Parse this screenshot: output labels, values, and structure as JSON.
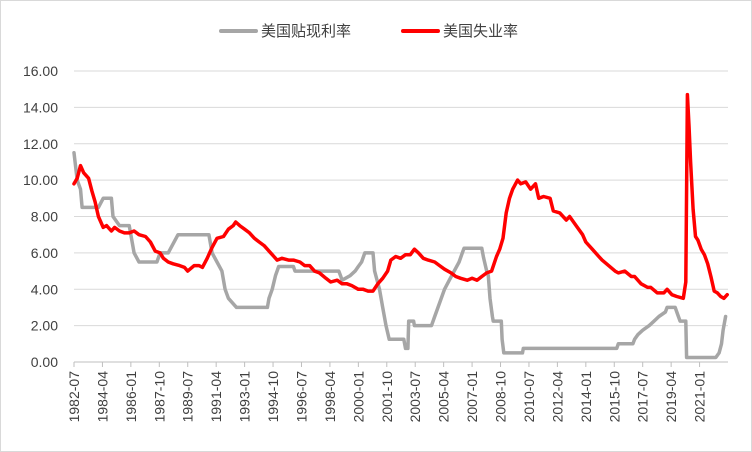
{
  "chart_data": {
    "type": "line",
    "title": "",
    "xlabel": "",
    "ylabel": "",
    "ylim": [
      0,
      16
    ],
    "yticks": [
      "16.00",
      "14.00",
      "12.00",
      "10.00",
      "8.00",
      "6.00",
      "4.00",
      "2.00",
      "0.00"
    ],
    "xticks": [
      "1982-07",
      "1984-04",
      "1986-01",
      "1987-10",
      "1989-07",
      "1991-04",
      "1993-01",
      "1994-10",
      "1996-07",
      "1998-04",
      "2000-01",
      "2001-10",
      "2003-07",
      "2005-04",
      "2007-01",
      "2008-10",
      "2010-07",
      "2012-04",
      "2014-01",
      "2015-10",
      "2017-07",
      "2019-04",
      "2021-01"
    ],
    "x_range": [
      1982.5,
      2022.75
    ],
    "grid": "horizontal",
    "legend_position": "top",
    "series": [
      {
        "name": "美国贴现利率",
        "color": "#a6a6a6",
        "points": [
          [
            1982.5,
            11.5
          ],
          [
            1982.7,
            10.0
          ],
          [
            1982.9,
            9.5
          ],
          [
            1983.0,
            8.5
          ],
          [
            1984.0,
            8.5
          ],
          [
            1984.3,
            9.0
          ],
          [
            1984.8,
            9.0
          ],
          [
            1984.9,
            8.0
          ],
          [
            1985.3,
            7.5
          ],
          [
            1985.9,
            7.5
          ],
          [
            1986.2,
            6.0
          ],
          [
            1986.5,
            5.5
          ],
          [
            1987.6,
            5.5
          ],
          [
            1987.8,
            6.0
          ],
          [
            1988.3,
            6.0
          ],
          [
            1988.6,
            6.5
          ],
          [
            1988.9,
            7.0
          ],
          [
            1990.8,
            7.0
          ],
          [
            1991.0,
            6.0
          ],
          [
            1991.3,
            5.5
          ],
          [
            1991.6,
            5.0
          ],
          [
            1991.8,
            4.0
          ],
          [
            1992.0,
            3.5
          ],
          [
            1992.5,
            3.0
          ],
          [
            1994.4,
            3.0
          ],
          [
            1994.5,
            3.5
          ],
          [
            1994.7,
            4.0
          ],
          [
            1994.9,
            4.75
          ],
          [
            1995.1,
            5.25
          ],
          [
            1996.0,
            5.25
          ],
          [
            1996.1,
            5.0
          ],
          [
            1997.2,
            5.0
          ],
          [
            1998.8,
            5.0
          ],
          [
            1998.9,
            4.75
          ],
          [
            1999.0,
            4.5
          ],
          [
            1999.5,
            4.75
          ],
          [
            1999.8,
            5.0
          ],
          [
            2000.0,
            5.25
          ],
          [
            2000.2,
            5.5
          ],
          [
            2000.4,
            6.0
          ],
          [
            2000.9,
            6.0
          ],
          [
            2001.0,
            5.0
          ],
          [
            2001.3,
            4.0
          ],
          [
            2001.5,
            3.0
          ],
          [
            2001.7,
            2.0
          ],
          [
            2001.9,
            1.25
          ],
          [
            2002.8,
            1.25
          ],
          [
            2002.9,
            0.75
          ],
          [
            2003.05,
            0.75
          ],
          [
            2003.1,
            2.25
          ],
          [
            2003.4,
            2.25
          ],
          [
            2003.45,
            2.0
          ],
          [
            2004.5,
            2.0
          ],
          [
            2004.7,
            2.5
          ],
          [
            2004.9,
            3.0
          ],
          [
            2005.3,
            4.0
          ],
          [
            2005.6,
            4.5
          ],
          [
            2005.9,
            5.0
          ],
          [
            2006.2,
            5.5
          ],
          [
            2006.4,
            6.0
          ],
          [
            2006.5,
            6.25
          ],
          [
            2007.6,
            6.25
          ],
          [
            2007.7,
            5.75
          ],
          [
            2007.9,
            5.0
          ],
          [
            2008.0,
            4.75
          ],
          [
            2008.1,
            3.5
          ],
          [
            2008.25,
            2.5
          ],
          [
            2008.3,
            2.25
          ],
          [
            2008.8,
            2.25
          ],
          [
            2008.85,
            1.25
          ],
          [
            2008.95,
            0.5
          ],
          [
            2010.1,
            0.5
          ],
          [
            2010.15,
            0.75
          ],
          [
            2015.9,
            0.75
          ],
          [
            2016.0,
            1.0
          ],
          [
            2016.9,
            1.0
          ],
          [
            2017.0,
            1.25
          ],
          [
            2017.2,
            1.5
          ],
          [
            2017.5,
            1.75
          ],
          [
            2017.9,
            2.0
          ],
          [
            2018.2,
            2.25
          ],
          [
            2018.5,
            2.5
          ],
          [
            2018.9,
            2.75
          ],
          [
            2019.0,
            3.0
          ],
          [
            2019.5,
            3.0
          ],
          [
            2019.6,
            2.75
          ],
          [
            2019.7,
            2.5
          ],
          [
            2019.8,
            2.25
          ],
          [
            2020.15,
            2.25
          ],
          [
            2020.2,
            0.25
          ],
          [
            2022.0,
            0.25
          ],
          [
            2022.2,
            0.5
          ],
          [
            2022.35,
            1.0
          ],
          [
            2022.45,
            1.75
          ],
          [
            2022.6,
            2.5
          ]
        ]
      },
      {
        "name": "美国失业率",
        "color": "#ff0000",
        "points": [
          [
            1982.5,
            9.8
          ],
          [
            1982.7,
            10.1
          ],
          [
            1982.9,
            10.8
          ],
          [
            1983.1,
            10.4
          ],
          [
            1983.4,
            10.1
          ],
          [
            1983.6,
            9.4
          ],
          [
            1983.8,
            8.8
          ],
          [
            1984.0,
            8.0
          ],
          [
            1984.3,
            7.4
          ],
          [
            1984.5,
            7.5
          ],
          [
            1984.8,
            7.2
          ],
          [
            1985.0,
            7.4
          ],
          [
            1985.3,
            7.2
          ],
          [
            1985.6,
            7.1
          ],
          [
            1985.9,
            7.1
          ],
          [
            1986.2,
            7.2
          ],
          [
            1986.5,
            7.0
          ],
          [
            1986.9,
            6.9
          ],
          [
            1987.2,
            6.6
          ],
          [
            1987.5,
            6.1
          ],
          [
            1987.8,
            6.0
          ],
          [
            1988.0,
            5.7
          ],
          [
            1988.3,
            5.5
          ],
          [
            1988.6,
            5.4
          ],
          [
            1989.0,
            5.3
          ],
          [
            1989.3,
            5.2
          ],
          [
            1989.5,
            5.0
          ],
          [
            1989.9,
            5.3
          ],
          [
            1990.2,
            5.3
          ],
          [
            1990.4,
            5.2
          ],
          [
            1990.7,
            5.7
          ],
          [
            1991.0,
            6.3
          ],
          [
            1991.3,
            6.8
          ],
          [
            1991.7,
            6.9
          ],
          [
            1992.0,
            7.3
          ],
          [
            1992.3,
            7.5
          ],
          [
            1992.45,
            7.7
          ],
          [
            1992.7,
            7.5
          ],
          [
            1993.0,
            7.3
          ],
          [
            1993.3,
            7.1
          ],
          [
            1993.6,
            6.8
          ],
          [
            1993.9,
            6.6
          ],
          [
            1994.2,
            6.4
          ],
          [
            1994.5,
            6.1
          ],
          [
            1994.8,
            5.8
          ],
          [
            1995.0,
            5.6
          ],
          [
            1995.3,
            5.7
          ],
          [
            1995.7,
            5.6
          ],
          [
            1996.0,
            5.6
          ],
          [
            1996.4,
            5.5
          ],
          [
            1996.7,
            5.3
          ],
          [
            1997.0,
            5.3
          ],
          [
            1997.3,
            5.0
          ],
          [
            1997.6,
            4.9
          ],
          [
            1998.0,
            4.6
          ],
          [
            1998.3,
            4.4
          ],
          [
            1998.7,
            4.5
          ],
          [
            1999.0,
            4.3
          ],
          [
            1999.3,
            4.3
          ],
          [
            1999.6,
            4.2
          ],
          [
            2000.0,
            4.0
          ],
          [
            2000.3,
            4.0
          ],
          [
            2000.6,
            3.9
          ],
          [
            2000.9,
            3.9
          ],
          [
            2001.2,
            4.3
          ],
          [
            2001.5,
            4.6
          ],
          [
            2001.8,
            5.0
          ],
          [
            2002.0,
            5.6
          ],
          [
            2002.3,
            5.8
          ],
          [
            2002.6,
            5.7
          ],
          [
            2002.9,
            5.9
          ],
          [
            2003.2,
            5.9
          ],
          [
            2003.45,
            6.2
          ],
          [
            2003.7,
            6.0
          ],
          [
            2004.0,
            5.7
          ],
          [
            2004.3,
            5.6
          ],
          [
            2004.7,
            5.5
          ],
          [
            2005.0,
            5.3
          ],
          [
            2005.3,
            5.1
          ],
          [
            2005.7,
            4.9
          ],
          [
            2006.0,
            4.7
          ],
          [
            2006.3,
            4.6
          ],
          [
            2006.7,
            4.5
          ],
          [
            2007.0,
            4.6
          ],
          [
            2007.3,
            4.5
          ],
          [
            2007.6,
            4.7
          ],
          [
            2007.9,
            4.9
          ],
          [
            2008.2,
            5.0
          ],
          [
            2008.5,
            5.8
          ],
          [
            2008.7,
            6.2
          ],
          [
            2008.9,
            6.8
          ],
          [
            2009.1,
            8.2
          ],
          [
            2009.3,
            9.0
          ],
          [
            2009.5,
            9.5
          ],
          [
            2009.8,
            10.0
          ],
          [
            2010.0,
            9.8
          ],
          [
            2010.3,
            9.9
          ],
          [
            2010.6,
            9.5
          ],
          [
            2010.9,
            9.8
          ],
          [
            2011.1,
            9.0
          ],
          [
            2011.4,
            9.1
          ],
          [
            2011.8,
            9.0
          ],
          [
            2012.0,
            8.3
          ],
          [
            2012.4,
            8.2
          ],
          [
            2012.8,
            7.8
          ],
          [
            2013.0,
            8.0
          ],
          [
            2013.4,
            7.5
          ],
          [
            2013.8,
            7.0
          ],
          [
            2014.0,
            6.6
          ],
          [
            2014.4,
            6.2
          ],
          [
            2014.8,
            5.8
          ],
          [
            2015.0,
            5.6
          ],
          [
            2015.4,
            5.3
          ],
          [
            2015.8,
            5.0
          ],
          [
            2016.0,
            4.9
          ],
          [
            2016.4,
            5.0
          ],
          [
            2016.8,
            4.7
          ],
          [
            2017.0,
            4.7
          ],
          [
            2017.4,
            4.3
          ],
          [
            2017.8,
            4.1
          ],
          [
            2018.0,
            4.1
          ],
          [
            2018.4,
            3.8
          ],
          [
            2018.8,
            3.8
          ],
          [
            2019.0,
            4.0
          ],
          [
            2019.3,
            3.7
          ],
          [
            2019.6,
            3.6
          ],
          [
            2020.0,
            3.5
          ],
          [
            2020.15,
            4.4
          ],
          [
            2020.25,
            14.7
          ],
          [
            2020.35,
            13.0
          ],
          [
            2020.45,
            11.0
          ],
          [
            2020.6,
            8.4
          ],
          [
            2020.75,
            6.9
          ],
          [
            2020.9,
            6.7
          ],
          [
            2021.1,
            6.2
          ],
          [
            2021.3,
            5.9
          ],
          [
            2021.5,
            5.4
          ],
          [
            2021.7,
            4.7
          ],
          [
            2021.9,
            3.9
          ],
          [
            2022.1,
            3.8
          ],
          [
            2022.3,
            3.6
          ],
          [
            2022.5,
            3.5
          ],
          [
            2022.7,
            3.7
          ]
        ]
      }
    ]
  }
}
